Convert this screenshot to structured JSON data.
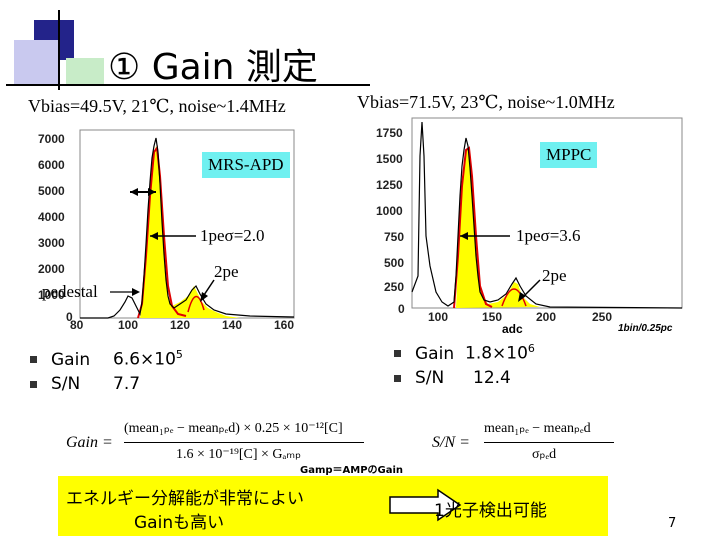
{
  "slide": {
    "title": "① Gain 測定",
    "page_number": "7"
  },
  "left": {
    "condition": "Vbias=49.5V, 21℃, noise~1.4MHz",
    "y_ticks": [
      "7000",
      "6000",
      "5000",
      "4000",
      "3000",
      "2000",
      "1000",
      "0"
    ],
    "x_ticks": [
      "80",
      "100",
      "120",
      "140",
      "160"
    ],
    "device_label": "MRS-APD",
    "sigma_label": "1peσ=2.0",
    "pe2_label": "2pe",
    "pedestal_label": "pedestal",
    "results": [
      {
        "key": "Gain",
        "value": "6.6×10",
        "exp": "5"
      },
      {
        "key": "S/N",
        "value": "7.7",
        "exp": ""
      }
    ]
  },
  "right": {
    "condition": "Vbias=71.5V, 23℃, noise~1.0MHz",
    "y_ticks": [
      "1750",
      "1500",
      "1250",
      "1000",
      "750",
      "500",
      "250",
      "0"
    ],
    "x_ticks": [
      "100",
      "150",
      "200",
      "250"
    ],
    "x_label": "adc",
    "bin_note": "1bin/0.25pc",
    "device_label": "MPPC",
    "sigma_label": "1peσ=3.6",
    "pe2_label": "2pe",
    "results": [
      {
        "key": "Gain",
        "value": "1.8×10",
        "exp": "6"
      },
      {
        "key": "S/N",
        "value": "12.4",
        "exp": ""
      }
    ]
  },
  "formulas": {
    "gain_lhs": "Gain =",
    "gain_num": "(mean₁ₚₑ − meanₚₑd) × 0.25 × 10⁻¹²[C]",
    "gain_den": "1.6 × 10⁻¹⁹[C] × Gₐₘₚ",
    "sn_lhs": "S/N =",
    "sn_num": "mean₁ₚₑ − meanₚₑd",
    "sn_den": "σₚₑd",
    "gamp_note": "Gamp＝AMPのGain"
  },
  "bottom": {
    "left_text_1": "エネルギー分解能が非常によい",
    "left_text_2": "Gainも高い",
    "right_text": "1光子検出可能"
  },
  "colors": {
    "fill_yellow": "#ffff00",
    "fit_red": "#e00000",
    "label_cyan": "#6ff0f0",
    "deco_blue": "#2222aa",
    "deco_lavender": "#c8c8f0"
  }
}
